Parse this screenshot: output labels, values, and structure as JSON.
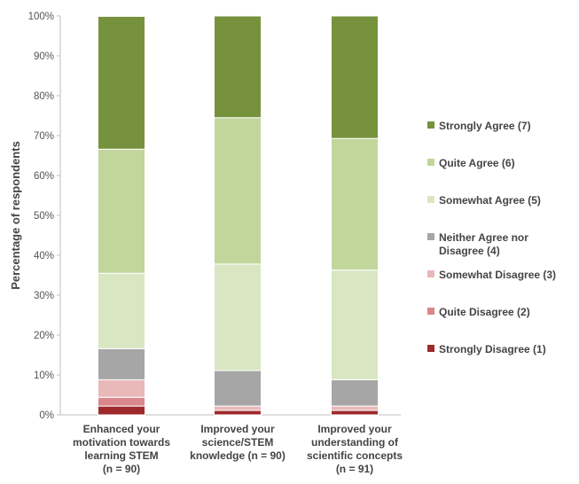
{
  "chart_data": {
    "type": "bar",
    "stacked": true,
    "percent_stacked": true,
    "ylabel": "Percentage of respondents",
    "ylim": [
      0,
      100
    ],
    "yticks": [
      "0%",
      "10%",
      "20%",
      "30%",
      "40%",
      "50%",
      "60%",
      "70%",
      "80%",
      "90%",
      "100%"
    ],
    "grid": false,
    "legend_position": "right",
    "categories": [
      [
        "Enhanced your",
        "motivation towards",
        "learning STEM",
        "(n = 90)"
      ],
      [
        "Improved your",
        "science/STEM",
        "knowledge (n = 90)"
      ],
      [
        "Improved your",
        "understanding of",
        "scientific concepts",
        "(n = 91)"
      ]
    ],
    "series": [
      {
        "name": "Strongly Disagree (1)",
        "legend_lines": [
          "Strongly Disagree (1)"
        ],
        "color": "#9e2a2b",
        "values": [
          2.2,
          1.1,
          1.1
        ]
      },
      {
        "name": "Quite Disagree (2)",
        "legend_lines": [
          "Quite Disagree (2)"
        ],
        "color": "#d9878a",
        "values": [
          2.2,
          0.0,
          0.0
        ]
      },
      {
        "name": "Somewhat Disagree (3)",
        "legend_lines": [
          "Somewhat Disagree (3)"
        ],
        "color": "#e9b8b9",
        "values": [
          4.4,
          1.1,
          1.1
        ]
      },
      {
        "name": "Neither Agree nor Disagree (4)",
        "legend_lines": [
          "Neither Agree nor",
          "Disagree (4)"
        ],
        "color": "#a6a6a6",
        "values": [
          7.8,
          8.9,
          6.6
        ]
      },
      {
        "name": "Somewhat Agree (5)",
        "legend_lines": [
          "Somewhat Agree (5)"
        ],
        "color": "#d9e6c2",
        "values": [
          18.9,
          26.7,
          27.5
        ]
      },
      {
        "name": "Quite Agree (6)",
        "legend_lines": [
          "Quite Agree (6)"
        ],
        "color": "#c2d69b",
        "values": [
          31.1,
          36.7,
          33.0
        ]
      },
      {
        "name": "Strongly Agree (7)",
        "legend_lines": [
          "Strongly Agree (7)"
        ],
        "color": "#76923c",
        "values": [
          33.3,
          25.5,
          30.7
        ]
      }
    ]
  }
}
